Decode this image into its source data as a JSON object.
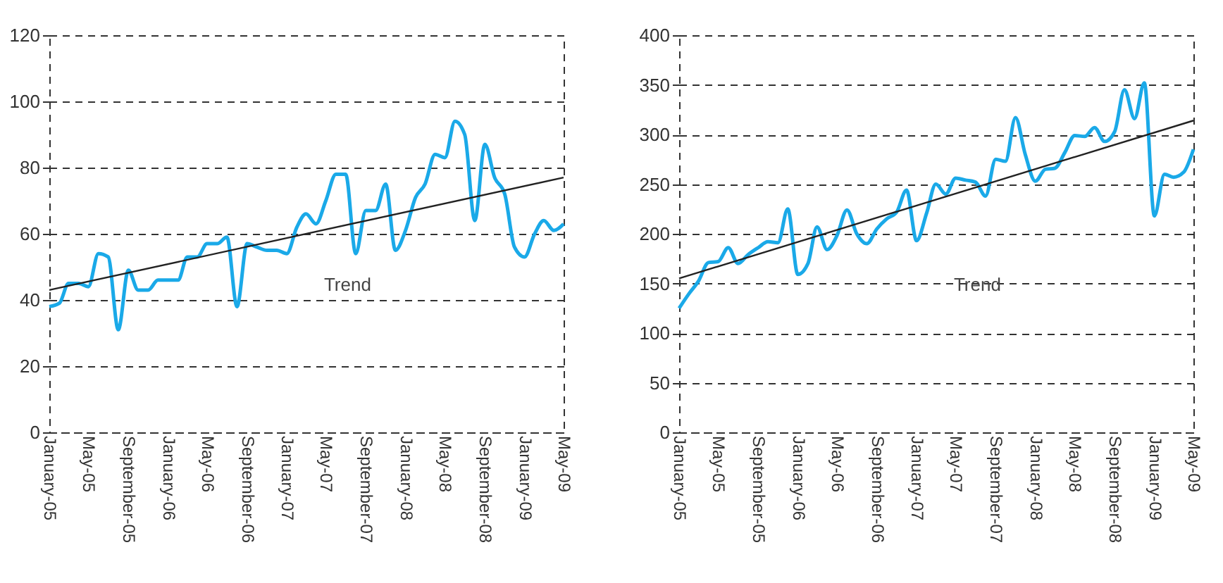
{
  "chart_data": [
    {
      "type": "line",
      "x": [
        "2005-01",
        "2005-02",
        "2005-03",
        "2005-04",
        "2005-05",
        "2005-06",
        "2005-07",
        "2005-08",
        "2005-09",
        "2005-10",
        "2005-11",
        "2005-12",
        "2006-01",
        "2006-02",
        "2006-03",
        "2006-04",
        "2006-05",
        "2006-06",
        "2006-07",
        "2006-08",
        "2006-09",
        "2006-10",
        "2006-11",
        "2006-12",
        "2007-01",
        "2007-02",
        "2007-03",
        "2007-04",
        "2007-05",
        "2007-06",
        "2007-07",
        "2007-08",
        "2007-09",
        "2007-10",
        "2007-11",
        "2007-12",
        "2008-01",
        "2008-02",
        "2008-03",
        "2008-04",
        "2008-05",
        "2008-06",
        "2008-07",
        "2008-08",
        "2008-09",
        "2008-10",
        "2008-11",
        "2008-12",
        "2009-01",
        "2009-02",
        "2009-03",
        "2009-04",
        "2009-05"
      ],
      "series": [
        {
          "color": "#1aa9e8",
          "values": [
            38,
            39,
            45,
            45,
            44,
            54,
            53,
            31,
            49,
            43,
            43,
            46,
            46,
            46,
            53,
            53,
            57,
            57,
            59,
            38,
            57,
            56,
            55,
            55,
            54,
            62,
            66,
            63,
            70,
            78,
            78,
            54,
            67,
            67,
            75,
            55,
            61,
            71,
            75,
            84,
            83,
            94,
            90,
            64,
            87,
            77,
            72,
            56,
            53,
            60,
            64,
            61,
            63
          ]
        },
        {
          "type": "line",
          "color": "#222222",
          "x": [
            "2005-01",
            "2009-05"
          ],
          "values": [
            43,
            77
          ]
        }
      ],
      "xlim": [
        "2005-01",
        "2009-05"
      ],
      "xticks": [
        {
          "value": "2005-01",
          "label": "January-05"
        },
        {
          "value": "2005-05",
          "label": "May-05"
        },
        {
          "value": "2005-09",
          "label": "September-05"
        },
        {
          "value": "2006-01",
          "label": "January-06"
        },
        {
          "value": "2006-05",
          "label": "May-06"
        },
        {
          "value": "2006-09",
          "label": "September-06"
        },
        {
          "value": "2007-01",
          "label": "January-07"
        },
        {
          "value": "2007-05",
          "label": "May-07"
        },
        {
          "value": "2007-09",
          "label": "September-07"
        },
        {
          "value": "2008-01",
          "label": "January-08"
        },
        {
          "value": "2008-05",
          "label": "May-08"
        },
        {
          "value": "2008-09",
          "label": "September-08"
        },
        {
          "value": "2009-01",
          "label": "January-09"
        },
        {
          "value": "2009-05",
          "label": "May-09"
        }
      ],
      "ylim": [
        0,
        120
      ],
      "yticks": [
        0,
        20,
        40,
        60,
        80,
        100,
        120
      ],
      "grid": "y",
      "line_style": "solid",
      "marker": "none",
      "annotations": [
        "Trend"
      ]
    },
    {
      "type": "line",
      "x": [
        "2005-01",
        "2005-02",
        "2005-03",
        "2005-04",
        "2005-05",
        "2005-06",
        "2005-07",
        "2005-08",
        "2005-09",
        "2005-10",
        "2005-11",
        "2005-12",
        "2006-01",
        "2006-02",
        "2006-03",
        "2006-04",
        "2006-05",
        "2006-06",
        "2006-07",
        "2006-08",
        "2006-09",
        "2006-10",
        "2006-11",
        "2006-12",
        "2007-01",
        "2007-02",
        "2007-03",
        "2007-04",
        "2007-05",
        "2007-06",
        "2007-07",
        "2007-08",
        "2007-09",
        "2007-10",
        "2007-11",
        "2007-12",
        "2008-01",
        "2008-02",
        "2008-03",
        "2008-04",
        "2008-05",
        "2008-06",
        "2008-07",
        "2008-08",
        "2008-09",
        "2008-10",
        "2008-11",
        "2008-12",
        "2009-01",
        "2009-02",
        "2009-03",
        "2009-04",
        "2009-05"
      ],
      "series": [
        {
          "color": "#1aa9e8",
          "values": [
            125,
            140,
            152,
            171,
            172,
            186,
            170,
            179,
            186,
            192,
            191,
            225,
            159,
            170,
            207,
            184,
            198,
            224,
            200,
            190,
            205,
            215,
            222,
            244,
            193,
            221,
            250,
            240,
            256,
            254,
            252,
            238,
            275,
            273,
            317,
            280,
            253,
            265,
            266,
            282,
            299,
            298,
            307,
            293,
            303,
            345,
            316,
            352,
            218,
            260,
            257,
            262,
            285
          ]
        },
        {
          "type": "line",
          "color": "#222222",
          "x": [
            "2005-01",
            "2009-05"
          ],
          "values": [
            155,
            314
          ]
        }
      ],
      "xlim": [
        "2005-01",
        "2009-05"
      ],
      "xticks": [
        {
          "value": "2005-01",
          "label": "January-05"
        },
        {
          "value": "2005-05",
          "label": "May-05"
        },
        {
          "value": "2005-09",
          "label": "September-05"
        },
        {
          "value": "2006-01",
          "label": "January-06"
        },
        {
          "value": "2006-05",
          "label": "May-06"
        },
        {
          "value": "2006-09",
          "label": "September-06"
        },
        {
          "value": "2007-01",
          "label": "January-07"
        },
        {
          "value": "2007-05",
          "label": "May-07"
        },
        {
          "value": "2007-09",
          "label": "September-07"
        },
        {
          "value": "2008-01",
          "label": "January-08"
        },
        {
          "value": "2008-05",
          "label": "May-08"
        },
        {
          "value": "2008-09",
          "label": "September-08"
        },
        {
          "value": "2009-01",
          "label": "January-09"
        },
        {
          "value": "2009-05",
          "label": "May-09"
        }
      ],
      "ylim": [
        0,
        400
      ],
      "yticks": [
        0,
        50,
        100,
        150,
        200,
        250,
        300,
        350,
        400
      ],
      "grid": "y",
      "line_style": "solid",
      "marker": "none",
      "annotations": [
        "Trend"
      ]
    }
  ]
}
